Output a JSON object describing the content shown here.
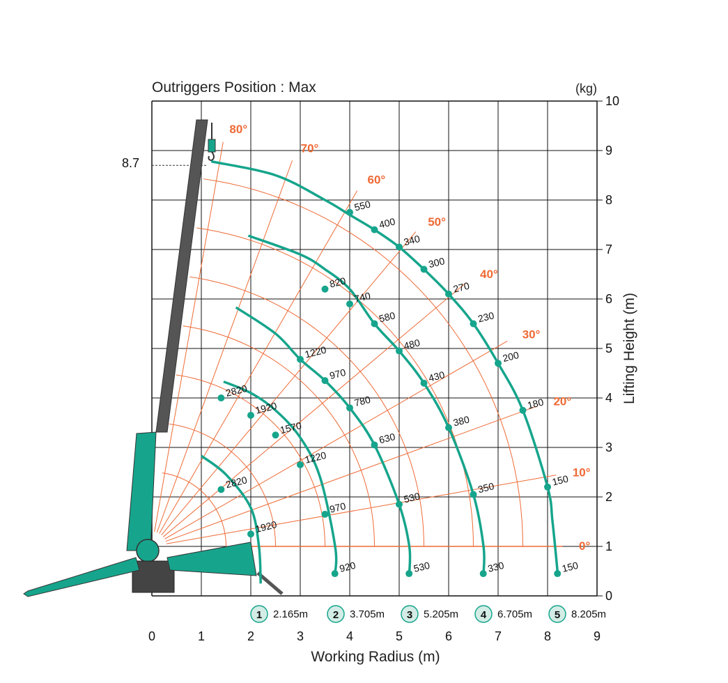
{
  "colors": {
    "curve": "#16a58c",
    "grid": "#111111",
    "angle": "#ee6a35",
    "crane_dark": "#555555",
    "crane_green": "#16a58c",
    "badge_fill": "#d3ece5"
  },
  "chart_data": {
    "type": "load chart",
    "title": "Outriggers Position : Max",
    "unit": "(kg)",
    "xlabel": "Working Radius (m)",
    "ylabel": "Lifting Height (m)",
    "xlim": [
      0,
      9
    ],
    "ylim": [
      0,
      10
    ],
    "x_ticks": [
      "0",
      "1",
      "2",
      "3",
      "4",
      "5",
      "6",
      "7",
      "8",
      "9"
    ],
    "y_ticks": [
      "0",
      "1",
      "2",
      "3",
      "4",
      "5",
      "6",
      "7",
      "8",
      "9",
      "10"
    ],
    "max_height_label": "8.7",
    "max_height": 8.7,
    "boom_pivot": [
      0,
      1
    ],
    "angles": [
      {
        "label": "80°",
        "deg": 80
      },
      {
        "label": "70°",
        "deg": 70
      },
      {
        "label": "60°",
        "deg": 60
      },
      {
        "label": "50°",
        "deg": 50
      },
      {
        "label": "40°",
        "deg": 40
      },
      {
        "label": "30°",
        "deg": 30
      },
      {
        "label": "20°",
        "deg": 20
      },
      {
        "label": "10°",
        "deg": 10
      },
      {
        "label": "0°",
        "deg": 0
      }
    ],
    "series": [
      {
        "name": "1",
        "radius_label": "2.165m",
        "radius": 2.165,
        "curve": [
          [
            1.0,
            2.83
          ],
          [
            1.5,
            2.45
          ],
          [
            2.0,
            1.78
          ],
          [
            2.165,
            1.0
          ],
          [
            2.2,
            0.25
          ]
        ],
        "points": [
          {
            "x": 1.4,
            "y": 2.15,
            "label": "2820"
          },
          {
            "x": 2.0,
            "y": 1.25,
            "label": "1920"
          }
        ]
      },
      {
        "name": "2",
        "radius_label": "3.705m",
        "radius": 3.705,
        "curve": [
          [
            1.45,
            4.33
          ],
          [
            2.0,
            4.1
          ],
          [
            2.5,
            3.75
          ],
          [
            3.0,
            3.2
          ],
          [
            3.4,
            2.4
          ],
          [
            3.705,
            1.0
          ],
          [
            3.705,
            0.45
          ]
        ],
        "points": [
          {
            "x": 1.4,
            "y": 4.0,
            "label": "2820"
          },
          {
            "x": 2.0,
            "y": 3.65,
            "label": "1920"
          },
          {
            "x": 2.5,
            "y": 3.25,
            "label": "1570"
          },
          {
            "x": 3.0,
            "y": 2.65,
            "label": "1220"
          },
          {
            "x": 3.5,
            "y": 1.65,
            "label": "970"
          },
          {
            "x": 3.7,
            "y": 0.45,
            "label": "920"
          }
        ]
      },
      {
        "name": "3",
        "radius_label": "5.205m",
        "radius": 5.205,
        "curve": [
          [
            1.7,
            5.83
          ],
          [
            2.5,
            5.3
          ],
          [
            3.0,
            4.78
          ],
          [
            3.5,
            4.35
          ],
          [
            4.0,
            3.8
          ],
          [
            4.5,
            3.05
          ],
          [
            5.0,
            1.85
          ],
          [
            5.205,
            1.0
          ],
          [
            5.205,
            0.45
          ]
        ],
        "points": [
          {
            "x": 3.0,
            "y": 4.78,
            "label": "1220"
          },
          {
            "x": 3.5,
            "y": 4.35,
            "label": "970"
          },
          {
            "x": 4.0,
            "y": 3.8,
            "label": "780"
          },
          {
            "x": 4.5,
            "y": 3.05,
            "label": "630"
          },
          {
            "x": 5.0,
            "y": 1.85,
            "label": "530"
          },
          {
            "x": 5.2,
            "y": 0.45,
            "label": "530"
          }
        ]
      },
      {
        "name": "4",
        "radius_label": "6.705m",
        "radius": 6.705,
        "curve": [
          [
            1.95,
            7.28
          ],
          [
            3.0,
            6.9
          ],
          [
            3.5,
            6.6
          ],
          [
            4.0,
            6.2
          ],
          [
            4.5,
            5.5
          ],
          [
            5.0,
            4.95
          ],
          [
            5.5,
            4.3
          ],
          [
            6.0,
            3.4
          ],
          [
            6.5,
            2.05
          ],
          [
            6.705,
            1.0
          ],
          [
            6.705,
            0.45
          ]
        ],
        "points": [
          {
            "x": 3.5,
            "y": 6.2,
            "label": "820"
          },
          {
            "x": 4.0,
            "y": 5.9,
            "label": "740"
          },
          {
            "x": 4.5,
            "y": 5.5,
            "label": "580"
          },
          {
            "x": 5.0,
            "y": 4.95,
            "label": "480"
          },
          {
            "x": 5.5,
            "y": 4.3,
            "label": "430"
          },
          {
            "x": 6.0,
            "y": 3.4,
            "label": "380"
          },
          {
            "x": 6.5,
            "y": 2.05,
            "label": "350"
          },
          {
            "x": 6.7,
            "y": 0.45,
            "label": "330"
          }
        ]
      },
      {
        "name": "5",
        "radius_label": "8.205m",
        "radius": 8.205,
        "curve": [
          [
            1.2,
            8.78
          ],
          [
            2.5,
            8.5
          ],
          [
            3.5,
            8.0
          ],
          [
            4.0,
            7.7
          ],
          [
            4.5,
            7.4
          ],
          [
            5.0,
            7.05
          ],
          [
            5.5,
            6.6
          ],
          [
            6.0,
            6.1
          ],
          [
            6.5,
            5.5
          ],
          [
            7.0,
            4.7
          ],
          [
            7.5,
            3.75
          ],
          [
            8.0,
            2.2
          ],
          [
            8.1,
            1.5
          ],
          [
            8.205,
            0.45
          ]
        ],
        "points": [
          {
            "x": 4.0,
            "y": 7.75,
            "label": "550"
          },
          {
            "x": 4.5,
            "y": 7.4,
            "label": "400"
          },
          {
            "x": 5.0,
            "y": 7.05,
            "label": "340"
          },
          {
            "x": 5.5,
            "y": 6.6,
            "label": "300"
          },
          {
            "x": 6.0,
            "y": 6.1,
            "label": "270"
          },
          {
            "x": 6.5,
            "y": 5.5,
            "label": "230"
          },
          {
            "x": 7.0,
            "y": 4.7,
            "label": "200"
          },
          {
            "x": 7.5,
            "y": 3.75,
            "label": "180"
          },
          {
            "x": 8.0,
            "y": 2.2,
            "label": "150"
          },
          {
            "x": 8.2,
            "y": 0.45,
            "label": "150"
          }
        ]
      }
    ]
  }
}
